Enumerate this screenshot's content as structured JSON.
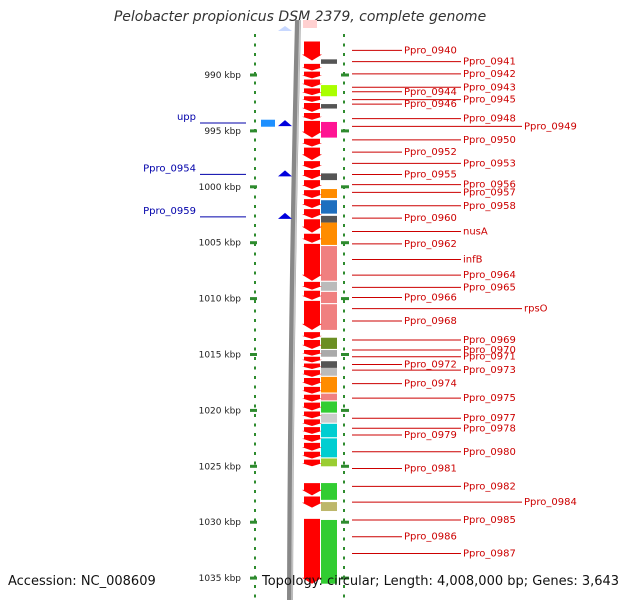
{
  "title": "Pelobacter propionicus DSM 2379, complete genome",
  "footer": {
    "accession": "Accession: NC_008609",
    "summary": "Topology: circular; Length: 4,008,000 bp; Genes: 3,643"
  },
  "scale": {
    "unit": "kbp",
    "ticks": [
      {
        "label": "990 kbp",
        "value": 990
      },
      {
        "label": "995 kbp",
        "value": 995
      },
      {
        "label": "1000 kbp",
        "value": 1000
      },
      {
        "label": "1005 kbp",
        "value": 1005
      },
      {
        "label": "1010 kbp",
        "value": 1010
      },
      {
        "label": "1015 kbp",
        "value": 1015
      },
      {
        "label": "1020 kbp",
        "value": 1020
      },
      {
        "label": "1025 kbp",
        "value": 1025
      },
      {
        "label": "1030 kbp",
        "value": 1030
      },
      {
        "label": "1035 kbp",
        "value": 1035
      }
    ]
  },
  "colors": {
    "forward_gene": "#ff0000",
    "reverse_gene": "#0000dd",
    "label_forward": "#cc0000",
    "label_reverse": "#0000aa",
    "tick": "#2e8b2e",
    "backbone": "#888888"
  },
  "left_labels": [
    {
      "name": "upp",
      "pos": 994.2
    },
    {
      "name": "Ppro_0954",
      "pos": 998.8
    },
    {
      "name": "Ppro_0959",
      "pos": 1002.6
    }
  ],
  "right_labels": [
    {
      "name": "Ppro_0940",
      "pos": 987.8
    },
    {
      "name": "Ppro_0941",
      "pos": 988.8
    },
    {
      "name": "Ppro_0942",
      "pos": 989.9
    },
    {
      "name": "Ppro_0943",
      "pos": 991.1
    },
    {
      "name": "Ppro_0944",
      "pos": 991.5
    },
    {
      "name": "Ppro_0945",
      "pos": 992.2
    },
    {
      "name": "Ppro_0946",
      "pos": 992.6
    },
    {
      "name": "Ppro_0948",
      "pos": 993.9
    },
    {
      "name": "Ppro_0949",
      "pos": 994.6
    },
    {
      "name": "Ppro_0950",
      "pos": 995.8
    },
    {
      "name": "Ppro_0952",
      "pos": 996.9
    },
    {
      "name": "Ppro_0953",
      "pos": 997.9
    },
    {
      "name": "Ppro_0955",
      "pos": 998.9
    },
    {
      "name": "Ppro_0956",
      "pos": 999.8
    },
    {
      "name": "Ppro_0957",
      "pos": 1000.5
    },
    {
      "name": "Ppro_0958",
      "pos": 1001.7
    },
    {
      "name": "Ppro_0960",
      "pos": 1002.8
    },
    {
      "name": "nusA",
      "pos": 1004.0
    },
    {
      "name": "Ppro_0962",
      "pos": 1005.1
    },
    {
      "name": "infB",
      "pos": 1006.5
    },
    {
      "name": "Ppro_0964",
      "pos": 1007.9
    },
    {
      "name": "Ppro_0965",
      "pos": 1009.0
    },
    {
      "name": "Ppro_0966",
      "pos": 1009.9
    },
    {
      "name": "rpsO",
      "pos": 1010.9
    },
    {
      "name": "Ppro_0968",
      "pos": 1012.0
    },
    {
      "name": "Ppro_0969",
      "pos": 1013.7
    },
    {
      "name": "Ppro_0970",
      "pos": 1014.6
    },
    {
      "name": "Ppro_0971",
      "pos": 1015.2
    },
    {
      "name": "Ppro_0972",
      "pos": 1015.9
    },
    {
      "name": "Ppro_0973",
      "pos": 1016.4
    },
    {
      "name": "Ppro_0974",
      "pos": 1017.6
    },
    {
      "name": "Ppro_0975",
      "pos": 1018.9
    },
    {
      "name": "Ppro_0977",
      "pos": 1020.7
    },
    {
      "name": "Ppro_0978",
      "pos": 1021.6
    },
    {
      "name": "Ppro_0979",
      "pos": 1022.2
    },
    {
      "name": "Ppro_0980",
      "pos": 1023.7
    },
    {
      "name": "Ppro_0981",
      "pos": 1025.2
    },
    {
      "name": "Ppro_0982",
      "pos": 1026.8
    },
    {
      "name": "Ppro_0984",
      "pos": 1028.2
    },
    {
      "name": "Ppro_0985",
      "pos": 1029.8
    },
    {
      "name": "Ppro_0986",
      "pos": 1031.3
    },
    {
      "name": "Ppro_0987",
      "pos": 1032.8
    }
  ],
  "feature_blocks": [
    {
      "start": 988.6,
      "end": 989.0,
      "color": "#555555"
    },
    {
      "start": 990.9,
      "end": 991.9,
      "color": "#aaff00"
    },
    {
      "start": 992.6,
      "end": 993.0,
      "color": "#555555"
    },
    {
      "start": 994.2,
      "end": 995.6,
      "color": "#ff1493"
    },
    {
      "start": 998.8,
      "end": 999.4,
      "color": "#555555"
    },
    {
      "start": 1000.2,
      "end": 1001.0,
      "color": "#ff8c00"
    },
    {
      "start": 1001.2,
      "end": 1002.4,
      "color": "#1e6fbf"
    },
    {
      "start": 1002.6,
      "end": 1003.2,
      "color": "#555555"
    },
    {
      "start": 1003.2,
      "end": 1005.2,
      "color": "#ff8c00"
    },
    {
      "start": 1005.3,
      "end": 1008.4,
      "color": "#f08080"
    },
    {
      "start": 1008.5,
      "end": 1009.3,
      "color": "#bbbbbb"
    },
    {
      "start": 1009.4,
      "end": 1010.4,
      "color": "#f08080"
    },
    {
      "start": 1010.5,
      "end": 1012.8,
      "color": "#f08080"
    },
    {
      "start": 1013.5,
      "end": 1014.5,
      "color": "#6b8e23"
    },
    {
      "start": 1014.6,
      "end": 1015.2,
      "color": "#aaaaaa"
    },
    {
      "start": 1015.6,
      "end": 1016.2,
      "color": "#555555"
    },
    {
      "start": 1016.2,
      "end": 1016.9,
      "color": "#bbbbbb"
    },
    {
      "start": 1017.0,
      "end": 1018.4,
      "color": "#ff8c00"
    },
    {
      "start": 1018.5,
      "end": 1019.1,
      "color": "#f08080"
    },
    {
      "start": 1019.2,
      "end": 1020.2,
      "color": "#32cd32"
    },
    {
      "start": 1020.3,
      "end": 1021.1,
      "color": "#cccccc"
    },
    {
      "start": 1021.2,
      "end": 1022.4,
      "color": "#00ced1"
    },
    {
      "start": 1022.5,
      "end": 1024.2,
      "color": "#00ced1"
    },
    {
      "start": 1024.3,
      "end": 1025.0,
      "color": "#9acd32"
    },
    {
      "start": 1026.5,
      "end": 1028.0,
      "color": "#32cd32"
    },
    {
      "start": 1028.2,
      "end": 1029.0,
      "color": "#bdb76b"
    },
    {
      "start": 1029.8,
      "end": 1035.5,
      "color": "#32cd32"
    }
  ],
  "reverse_genes": [
    {
      "start": 994.0,
      "end": 994.6
    },
    {
      "start": 998.6,
      "end": 999.0
    },
    {
      "start": 1002.4,
      "end": 1002.8
    }
  ],
  "forward_genes": [
    {
      "start": 987.0,
      "end": 988.7
    },
    {
      "start": 989.0,
      "end": 989.6
    },
    {
      "start": 989.7,
      "end": 990.3
    },
    {
      "start": 990.4,
      "end": 991.1
    },
    {
      "start": 991.2,
      "end": 991.8
    },
    {
      "start": 991.9,
      "end": 992.4
    },
    {
      "start": 992.5,
      "end": 993.3
    },
    {
      "start": 993.4,
      "end": 994.0
    },
    {
      "start": 994.1,
      "end": 995.6
    },
    {
      "start": 995.7,
      "end": 996.4
    },
    {
      "start": 996.5,
      "end": 997.6
    },
    {
      "start": 997.7,
      "end": 998.4
    },
    {
      "start": 998.5,
      "end": 999.3
    },
    {
      "start": 999.4,
      "end": 1000.2
    },
    {
      "start": 1000.3,
      "end": 1001.0
    },
    {
      "start": 1001.1,
      "end": 1001.9
    },
    {
      "start": 1002.0,
      "end": 1002.8
    },
    {
      "start": 1002.9,
      "end": 1004.1
    },
    {
      "start": 1004.2,
      "end": 1005.0
    },
    {
      "start": 1005.1,
      "end": 1008.4
    },
    {
      "start": 1008.5,
      "end": 1009.2
    },
    {
      "start": 1009.3,
      "end": 1010.1
    },
    {
      "start": 1010.2,
      "end": 1012.8
    },
    {
      "start": 1013.0,
      "end": 1013.6
    },
    {
      "start": 1013.7,
      "end": 1014.5
    },
    {
      "start": 1014.6,
      "end": 1015.1
    },
    {
      "start": 1015.2,
      "end": 1015.7
    },
    {
      "start": 1015.8,
      "end": 1016.3
    },
    {
      "start": 1016.4,
      "end": 1017.0
    },
    {
      "start": 1017.1,
      "end": 1017.8
    },
    {
      "start": 1017.9,
      "end": 1018.5
    },
    {
      "start": 1018.6,
      "end": 1019.2
    },
    {
      "start": 1019.3,
      "end": 1020.0
    },
    {
      "start": 1020.1,
      "end": 1020.7
    },
    {
      "start": 1020.8,
      "end": 1021.4
    },
    {
      "start": 1021.5,
      "end": 1022.1
    },
    {
      "start": 1022.2,
      "end": 1022.8
    },
    {
      "start": 1022.9,
      "end": 1023.6
    },
    {
      "start": 1023.7,
      "end": 1024.3
    },
    {
      "start": 1024.4,
      "end": 1025.0
    },
    {
      "start": 1026.5,
      "end": 1027.6
    },
    {
      "start": 1027.7,
      "end": 1028.7
    },
    {
      "start": 1029.7,
      "end": 1035.5
    }
  ]
}
